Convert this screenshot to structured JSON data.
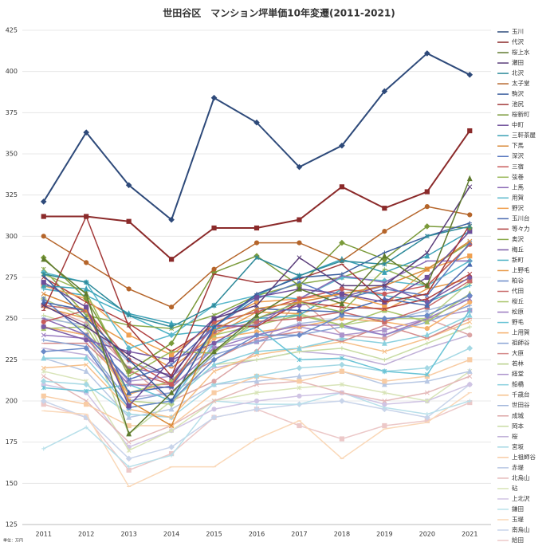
{
  "chart_data": {
    "type": "line",
    "title": "世田谷区　マンション坪単価10年変遷(2011-2021)",
    "note": "単位：万円",
    "categories": [
      "2011",
      "2012",
      "2013",
      "2014",
      "2015",
      "2016",
      "2017",
      "2018",
      "2019",
      "2020",
      "2021"
    ],
    "ylim": [
      125,
      425
    ],
    "yticks": [
      125,
      150,
      175,
      200,
      225,
      250,
      275,
      300,
      325,
      350,
      375,
      400,
      425
    ],
    "grid": true,
    "series": [
      {
        "name": "玉川",
        "color": "#2e4a7a",
        "values": [
          321,
          363,
          331,
          310,
          384,
          369,
          342,
          355,
          388,
          411,
          398
        ]
      },
      {
        "name": "代沢",
        "color": "#8b2a2a",
        "values": [
          312,
          312,
          309,
          286,
          305,
          305,
          310,
          330,
          317,
          327,
          364
        ]
      },
      {
        "name": "桜上水",
        "color": "#5f7a2e",
        "values": [
          286,
          265,
          180,
          205,
          230,
          252,
          268,
          259,
          288,
          270,
          335
        ]
      },
      {
        "name": "瀬田",
        "color": "#5a3d7a",
        "values": [
          258,
          245,
          228,
          214,
          250,
          258,
          287,
          270,
          270,
          290,
          330
        ]
      },
      {
        "name": "北沢",
        "color": "#2e8a9a",
        "values": [
          277,
          272,
          252,
          245,
          258,
          287,
          276,
          285,
          283,
          300,
          306
        ]
      },
      {
        "name": "太子堂",
        "color": "#b5652a",
        "values": [
          300,
          284,
          268,
          257,
          280,
          296,
          296,
          285,
          303,
          318,
          313
        ]
      },
      {
        "name": "駒沢",
        "color": "#3b5e9e",
        "values": [
          276,
          250,
          225,
          200,
          245,
          265,
          275,
          277,
          290,
          300,
          308
        ]
      },
      {
        "name": "池尻",
        "color": "#a33a3a",
        "values": [
          255,
          312,
          245,
          215,
          277,
          272,
          274,
          283,
          260,
          265,
          307
        ]
      },
      {
        "name": "桜新町",
        "color": "#7a9a3a",
        "values": [
          287,
          262,
          218,
          235,
          278,
          288,
          270,
          296,
          286,
          306,
          305
        ]
      },
      {
        "name": "中町",
        "color": "#6e4e9a",
        "values": [
          272,
          257,
          197,
          225,
          250,
          263,
          268,
          265,
          260,
          275,
          303
        ]
      },
      {
        "name": "三軒茶屋",
        "color": "#3aa0b5",
        "values": [
          270,
          268,
          253,
          247,
          245,
          264,
          276,
          286,
          278,
          288,
          303
        ]
      },
      {
        "name": "下馬",
        "color": "#d98a3a",
        "values": [
          265,
          255,
          200,
          185,
          243,
          256,
          260,
          265,
          270,
          280,
          297
        ]
      },
      {
        "name": "深沢",
        "color": "#5a7ac0",
        "values": [
          262,
          240,
          213,
          222,
          245,
          262,
          272,
          262,
          268,
          264,
          296
        ]
      },
      {
        "name": "三宿",
        "color": "#c85a5a",
        "values": [
          248,
          255,
          225,
          210,
          248,
          254,
          262,
          268,
          265,
          270,
          295
        ]
      },
      {
        "name": "弦巻",
        "color": "#9ab85a",
        "values": [
          277,
          266,
          215,
          230,
          229,
          250,
          260,
          254,
          280,
          270,
          295
        ]
      },
      {
        "name": "上馬",
        "color": "#8a6ab5",
        "values": [
          250,
          240,
          220,
          216,
          245,
          246,
          262,
          276,
          272,
          285,
          285
        ]
      },
      {
        "name": "用賀",
        "color": "#5ab8cc",
        "values": [
          278,
          272,
          232,
          240,
          258,
          264,
          262,
          275,
          273,
          270,
          285
        ]
      },
      {
        "name": "野沢",
        "color": "#f0a050",
        "values": [
          270,
          262,
          240,
          228,
          247,
          260,
          262,
          265,
          258,
          280,
          288
        ]
      },
      {
        "name": "玉川台",
        "color": "#4a6ab0",
        "values": [
          260,
          255,
          205,
          209,
          243,
          256,
          255,
          254,
          262,
          258,
          283
        ]
      },
      {
        "name": "等々力",
        "color": "#b04040",
        "values": [
          275,
          260,
          247,
          230,
          246,
          245,
          260,
          257,
          256,
          262,
          277
        ]
      },
      {
        "name": "奥沢",
        "color": "#8aaa4a",
        "values": [
          280,
          252,
          246,
          244,
          252,
          264,
          271,
          275,
          284,
          280,
          296
        ]
      },
      {
        "name": "梅丘",
        "color": "#7a5aa5",
        "values": [
          245,
          237,
          230,
          225,
          235,
          250,
          258,
          263,
          270,
          260,
          275
        ]
      },
      {
        "name": "新町",
        "color": "#4ab0c4",
        "values": [
          268,
          264,
          252,
          240,
          243,
          250,
          252,
          268,
          264,
          260,
          270
        ]
      },
      {
        "name": "上野毛",
        "color": "#e89a4a",
        "values": [
          257,
          250,
          235,
          220,
          240,
          254,
          253,
          260,
          255,
          268,
          274
        ]
      },
      {
        "name": "粕谷",
        "color": "#6a8ac8",
        "values": [
          230,
          232,
          196,
          200,
          225,
          240,
          240,
          252,
          250,
          252,
          264
        ]
      },
      {
        "name": "代田",
        "color": "#c86a6a",
        "values": [
          258,
          255,
          218,
          210,
          242,
          248,
          250,
          254,
          248,
          257,
          273
        ]
      },
      {
        "name": "桜丘",
        "color": "#a8c46a",
        "values": [
          244,
          245,
          205,
          212,
          240,
          246,
          252,
          246,
          255,
          248,
          265
        ]
      },
      {
        "name": "松原",
        "color": "#9a7ac0",
        "values": [
          240,
          238,
          210,
          208,
          232,
          240,
          246,
          246,
          240,
          250,
          262
        ]
      },
      {
        "name": "野毛",
        "color": "#6ac4d6",
        "values": [
          208,
          206,
          210,
          200,
          235,
          245,
          225,
          226,
          218,
          216,
          255
        ]
      },
      {
        "name": "上用賀",
        "color": "#f5b06a",
        "values": [
          245,
          240,
          204,
          212,
          238,
          242,
          245,
          250,
          248,
          244,
          260
        ]
      },
      {
        "name": "祖師谷",
        "color": "#8aa4d4",
        "values": [
          237,
          233,
          200,
          205,
          228,
          236,
          240,
          245,
          240,
          248,
          258
        ]
      },
      {
        "name": "大原",
        "color": "#d48a8a",
        "values": [
          235,
          235,
          210,
          210,
          225,
          238,
          242,
          236,
          246,
          238,
          250
        ]
      },
      {
        "name": "若林",
        "color": "#b8d08a",
        "values": [
          262,
          250,
          200,
          198,
          230,
          248,
          253,
          246,
          250,
          250,
          272
        ]
      },
      {
        "name": "経堂",
        "color": "#ac94cc",
        "values": [
          245,
          240,
          212,
          215,
          232,
          236,
          245,
          240,
          243,
          250,
          255
        ]
      },
      {
        "name": "船橋",
        "color": "#8ad0de",
        "values": [
          226,
          226,
          196,
          200,
          222,
          230,
          232,
          238,
          235,
          240,
          252
        ]
      },
      {
        "name": "千歳台",
        "color": "#f6c08a",
        "values": [
          220,
          222,
          195,
          190,
          218,
          228,
          232,
          236,
          230,
          238,
          248
        ]
      },
      {
        "name": "世田谷",
        "color": "#a4b8dc",
        "values": [
          250,
          246,
          224,
          215,
          235,
          240,
          247,
          250,
          248,
          255,
          262
        ]
      },
      {
        "name": "成城",
        "color": "#dca4a4",
        "values": [
          258,
          247,
          220,
          200,
          212,
          230,
          262,
          240,
          238,
          250,
          240
        ]
      },
      {
        "name": "岡本",
        "color": "#c8dca4",
        "values": [
          252,
          244,
          180,
          200,
          222,
          225,
          230,
          232,
          225,
          235,
          245
        ]
      },
      {
        "name": "桜",
        "color": "#c0b0d8",
        "values": [
          232,
          228,
          202,
          205,
          220,
          225,
          230,
          228,
          222,
          232,
          240
        ]
      },
      {
        "name": "宮坂",
        "color": "#a4d8e4",
        "values": [
          212,
          210,
          192,
          190,
          210,
          215,
          220,
          222,
          218,
          220,
          232
        ]
      },
      {
        "name": "上祖師谷",
        "color": "#f8cca4",
        "values": [
          203,
          198,
          185,
          185,
          205,
          215,
          212,
          218,
          212,
          215,
          225
        ]
      },
      {
        "name": "赤堤",
        "color": "#b8c8e4",
        "values": [
          226,
          218,
          190,
          195,
          210,
          212,
          215,
          218,
          210,
          212,
          218
        ]
      },
      {
        "name": "北烏山",
        "color": "#e4b8b8",
        "values": [
          215,
          200,
          175,
          185,
          200,
          210,
          212,
          205,
          200,
          205,
          215
        ]
      },
      {
        "name": "砧",
        "color": "#d8e4b8",
        "values": [
          218,
          212,
          170,
          182,
          200,
          205,
          208,
          210,
          205,
          200,
          218
        ]
      },
      {
        "name": "上北沢",
        "color": "#d0c4e4",
        "values": [
          210,
          205,
          172,
          182,
          195,
          200,
          203,
          205,
          198,
          200,
          210
        ]
      },
      {
        "name": "鎌田",
        "color": "#b8e0ea",
        "values": [
          171,
          184,
          160,
          167,
          200,
          198,
          198,
          205,
          196,
          192,
          200
        ]
      },
      {
        "name": "玉堤",
        "color": "#fad8b8",
        "values": [
          194,
          192,
          148,
          160,
          160,
          177,
          188,
          165,
          183,
          187,
          205
        ]
      },
      {
        "name": "南烏山",
        "color": "#c8d4ea",
        "values": [
          200,
          190,
          165,
          172,
          190,
          195,
          198,
          200,
          195,
          190,
          210
        ]
      },
      {
        "name": "給田",
        "color": "#ecc8c8",
        "values": [
          198,
          190,
          158,
          168,
          190,
          195,
          185,
          177,
          185,
          188,
          199
        ]
      }
    ]
  }
}
